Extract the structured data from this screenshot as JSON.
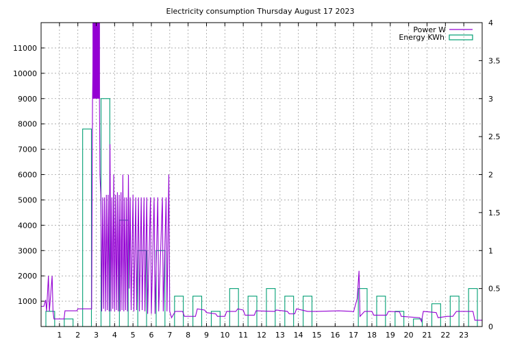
{
  "chart_data": {
    "type": "line",
    "title": "Electricity consumption Thursday August 17 2023",
    "legend": {
      "placement": "top-right"
    },
    "grid": true,
    "x_ticks": [
      "1",
      "2",
      "3",
      "4",
      "5",
      "6",
      "7",
      "8",
      "9",
      "10",
      "11",
      "12",
      "13",
      "14",
      "15",
      "16",
      "17",
      "18",
      "19",
      "20",
      "21",
      "22",
      "23"
    ],
    "xlim": [
      0,
      24
    ],
    "y_left": {
      "lim": [
        0,
        12000
      ],
      "ticks": [
        "1000",
        "2000",
        "3000",
        "4000",
        "5000",
        "6000",
        "7000",
        "8000",
        "9000",
        "10000",
        "11000"
      ]
    },
    "y_right": {
      "lim": [
        0,
        4
      ],
      "ticks": [
        "0",
        "0.5",
        "1",
        "1.5",
        "2",
        "2.5",
        "3",
        "3.5",
        "4"
      ]
    },
    "series": [
      {
        "name": "Power W",
        "color": "#9400d3",
        "axis": "left",
        "points": [
          [
            0.0,
            800
          ],
          [
            0.15,
            800
          ],
          [
            0.25,
            1050
          ],
          [
            0.3,
            600
          ],
          [
            0.4,
            2000
          ],
          [
            0.45,
            600
          ],
          [
            0.6,
            2000
          ],
          [
            0.65,
            600
          ],
          [
            0.7,
            300
          ],
          [
            1.25,
            300
          ],
          [
            1.3,
            620
          ],
          [
            1.95,
            620
          ],
          [
            2.0,
            700
          ],
          [
            2.75,
            700
          ],
          [
            2.8,
            9000
          ],
          [
            2.85,
            12000
          ],
          [
            2.9,
            9000
          ],
          [
            2.95,
            12000
          ],
          [
            3.0,
            9000
          ],
          [
            3.05,
            12000
          ],
          [
            3.1,
            9000
          ],
          [
            3.15,
            12000
          ],
          [
            3.2,
            6000
          ],
          [
            3.25,
            5200
          ],
          [
            3.3,
            600
          ],
          [
            3.35,
            5100
          ],
          [
            3.4,
            700
          ],
          [
            3.45,
            5100
          ],
          [
            3.5,
            600
          ],
          [
            3.55,
            5200
          ],
          [
            3.6,
            650
          ],
          [
            3.65,
            5200
          ],
          [
            3.7,
            600
          ],
          [
            3.75,
            7200
          ],
          [
            3.8,
            600
          ],
          [
            3.85,
            5100
          ],
          [
            3.9,
            700
          ],
          [
            3.95,
            6000
          ],
          [
            4.0,
            600
          ],
          [
            4.05,
            5200
          ],
          [
            4.1,
            650
          ],
          [
            4.15,
            5300
          ],
          [
            4.2,
            600
          ],
          [
            4.25,
            5200
          ],
          [
            4.3,
            600
          ],
          [
            4.35,
            5300
          ],
          [
            4.4,
            650
          ],
          [
            4.45,
            6000
          ],
          [
            4.5,
            600
          ],
          [
            4.55,
            5100
          ],
          [
            4.6,
            650
          ],
          [
            4.65,
            5100
          ],
          [
            4.7,
            600
          ],
          [
            4.75,
            6000
          ],
          [
            4.8,
            1500
          ],
          [
            4.85,
            5100
          ],
          [
            4.9,
            650
          ],
          [
            5.0,
            5200
          ],
          [
            5.05,
            600
          ],
          [
            5.15,
            5100
          ],
          [
            5.2,
            650
          ],
          [
            5.3,
            5100
          ],
          [
            5.35,
            600
          ],
          [
            5.45,
            5100
          ],
          [
            5.5,
            650
          ],
          [
            5.6,
            5100
          ],
          [
            5.65,
            600
          ],
          [
            5.75,
            5100
          ],
          [
            5.8,
            500
          ],
          [
            5.95,
            5100
          ],
          [
            6.0,
            500
          ],
          [
            6.15,
            5100
          ],
          [
            6.2,
            500
          ],
          [
            6.35,
            5100
          ],
          [
            6.4,
            600
          ],
          [
            6.6,
            5100
          ],
          [
            6.65,
            600
          ],
          [
            6.8,
            5100
          ],
          [
            6.85,
            600
          ],
          [
            6.95,
            6000
          ],
          [
            7.0,
            600
          ],
          [
            7.1,
            350
          ],
          [
            7.3,
            600
          ],
          [
            7.7,
            600
          ],
          [
            7.8,
            400
          ],
          [
            8.4,
            400
          ],
          [
            8.5,
            700
          ],
          [
            8.9,
            650
          ],
          [
            9.0,
            550
          ],
          [
            9.5,
            500
          ],
          [
            9.6,
            400
          ],
          [
            10.0,
            400
          ],
          [
            10.1,
            600
          ],
          [
            10.6,
            600
          ],
          [
            10.7,
            700
          ],
          [
            11.0,
            650
          ],
          [
            11.1,
            450
          ],
          [
            11.6,
            450
          ],
          [
            11.7,
            620
          ],
          [
            12.7,
            600
          ],
          [
            12.8,
            650
          ],
          [
            13.4,
            600
          ],
          [
            13.5,
            500
          ],
          [
            13.8,
            500
          ],
          [
            13.9,
            700
          ],
          [
            14.5,
            600
          ],
          [
            15.0,
            600
          ],
          [
            16.2,
            620
          ],
          [
            16.9,
            600
          ],
          [
            17.0,
            580
          ],
          [
            17.2,
            1100
          ],
          [
            17.3,
            2200
          ],
          [
            17.35,
            400
          ],
          [
            17.6,
            600
          ],
          [
            18.0,
            600
          ],
          [
            18.1,
            450
          ],
          [
            18.8,
            450
          ],
          [
            18.9,
            600
          ],
          [
            19.5,
            580
          ],
          [
            19.6,
            400
          ],
          [
            20.6,
            350
          ],
          [
            20.7,
            200
          ],
          [
            20.8,
            600
          ],
          [
            21.5,
            550
          ],
          [
            21.6,
            350
          ],
          [
            22.1,
            400
          ],
          [
            22.4,
            400
          ],
          [
            22.6,
            600
          ],
          [
            23.5,
            600
          ],
          [
            23.6,
            250
          ],
          [
            24.0,
            250
          ]
        ]
      },
      {
        "name": "Energy KWh",
        "color": "#009e73",
        "axis": "right",
        "bars": [
          [
            0,
            0.2
          ],
          [
            1,
            0.1
          ],
          [
            2,
            2.6
          ],
          [
            3,
            3
          ],
          [
            4,
            1.4
          ],
          [
            5,
            1.0
          ],
          [
            6,
            1.0
          ],
          [
            7,
            0.4
          ],
          [
            8,
            0.4
          ],
          [
            9,
            0.2
          ],
          [
            10,
            0.5
          ],
          [
            11,
            0.4
          ],
          [
            12,
            0.5
          ],
          [
            13,
            0.4
          ],
          [
            14,
            0.4
          ],
          [
            15,
            0.0
          ],
          [
            16,
            0.0
          ],
          [
            17,
            0.5
          ],
          [
            18,
            0.4
          ],
          [
            19,
            0.2
          ],
          [
            20,
            0.1
          ],
          [
            21,
            0.3
          ],
          [
            22,
            0.4
          ],
          [
            23,
            0.5
          ]
        ]
      }
    ]
  }
}
